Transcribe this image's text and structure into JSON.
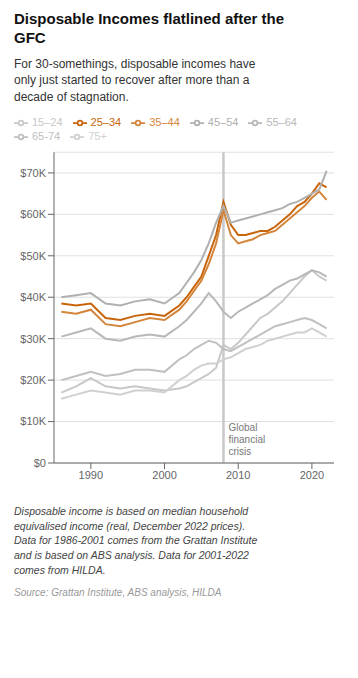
{
  "chart_data": {
    "type": "line",
    "title": "Disposable Incomes flatlined after the\nGFC",
    "subtitle": "For 30-somethings, disposable incomes have\nonly just started to recover after more than a\ndecade of stagnation.",
    "footnote": "Disposable income is based on median household\nequivalised income (real, December 2022 prices).\nData for 1986-2001 comes from the Grattan Institute\nand is based on ABS analysis. Data for 2001-2022\ncomes from HILDA.",
    "source": "Source: Grattan Institute, ABS analysis, HILDA",
    "x": [
      1986,
      1988,
      1990,
      1992,
      1994,
      1996,
      1998,
      2000,
      2002,
      2003,
      2004,
      2005,
      2006,
      2007,
      2008,
      2009,
      2010,
      2011,
      2012,
      2013,
      2014,
      2015,
      2016,
      2017,
      2018,
      2019,
      2020,
      2021,
      2022
    ],
    "series": [
      {
        "name": "15–24",
        "color": "#c8c8c8",
        "values": [
          17000,
          18500,
          20500,
          18500,
          18000,
          18500,
          18000,
          17500,
          18000,
          18500,
          19500,
          20500,
          21500,
          23000,
          28500,
          27500,
          29000,
          31000,
          33000,
          35000,
          36000,
          37500,
          39000,
          41000,
          43000,
          45000,
          46500,
          45000,
          44000
        ]
      },
      {
        "name": "25–34",
        "color": "#c8650a",
        "values": [
          38500,
          38000,
          38500,
          35000,
          34500,
          35500,
          36000,
          35500,
          38000,
          40000,
          42500,
          45000,
          50000,
          55000,
          63000,
          57500,
          55000,
          55000,
          55500,
          56000,
          56000,
          57000,
          58500,
          60000,
          62000,
          63000,
          65000,
          67500,
          66500
        ]
      },
      {
        "name": "35–44",
        "color": "#d4853c",
        "values": [
          36500,
          36000,
          37000,
          33500,
          33000,
          34000,
          35000,
          34500,
          37000,
          39000,
          41500,
          44000,
          48000,
          53000,
          61000,
          55000,
          53000,
          53500,
          54000,
          55000,
          55500,
          56000,
          57500,
          59000,
          60500,
          62000,
          64000,
          65500,
          63500
        ]
      },
      {
        "name": "45–54",
        "color": "#b0b0b0",
        "values": [
          40000,
          40500,
          41000,
          38500,
          38000,
          39000,
          39500,
          38500,
          41000,
          43500,
          46000,
          49000,
          53000,
          58000,
          62000,
          58000,
          58500,
          59000,
          59500,
          60000,
          60500,
          61000,
          61500,
          62500,
          63000,
          64000,
          65000,
          66000,
          70500
        ]
      },
      {
        "name": "55–64",
        "color": "#b8b8b8",
        "values": [
          30500,
          31500,
          32500,
          30000,
          29500,
          30500,
          31000,
          30500,
          33000,
          34500,
          36500,
          38500,
          41000,
          39000,
          36500,
          35000,
          36500,
          37500,
          38500,
          39500,
          40500,
          42000,
          43000,
          44000,
          44500,
          45500,
          46500,
          46000,
          45000
        ]
      },
      {
        "name": "65-74",
        "color": "#c0c0c0",
        "values": [
          20000,
          21000,
          22000,
          21000,
          21500,
          22500,
          22500,
          22000,
          25000,
          26000,
          27500,
          28500,
          29500,
          29000,
          27500,
          27000,
          28000,
          29000,
          30000,
          31000,
          32000,
          33000,
          33500,
          34000,
          34500,
          35000,
          34500,
          33500,
          32500
        ]
      },
      {
        "name": "75+",
        "color": "#d0d0d0",
        "values": [
          15500,
          16500,
          17500,
          17000,
          16500,
          17500,
          17500,
          17000,
          20000,
          21000,
          22500,
          23500,
          24000,
          24000,
          25000,
          25500,
          26500,
          27500,
          28000,
          28500,
          29500,
          30000,
          30500,
          31000,
          31500,
          31500,
          32500,
          31500,
          30500
        ]
      }
    ],
    "xlim": [
      1985,
      2023
    ],
    "xticks": [
      1990,
      2000,
      2010,
      2020
    ],
    "ylim": [
      0,
      75000
    ],
    "yticks": [
      {
        "value": 0,
        "label": "$0"
      },
      {
        "value": 10000,
        "label": "$10K"
      },
      {
        "value": 20000,
        "label": "$20K"
      },
      {
        "value": 30000,
        "label": "$30K"
      },
      {
        "value": 40000,
        "label": "$40K"
      },
      {
        "value": 50000,
        "label": "$50K"
      },
      {
        "value": 60000,
        "label": "$60K"
      },
      {
        "value": 70000,
        "label": "$70K"
      }
    ],
    "grid": true,
    "annotations": [
      {
        "x": 2008,
        "text": "Global\nfinancial\ncrisis"
      }
    ]
  }
}
